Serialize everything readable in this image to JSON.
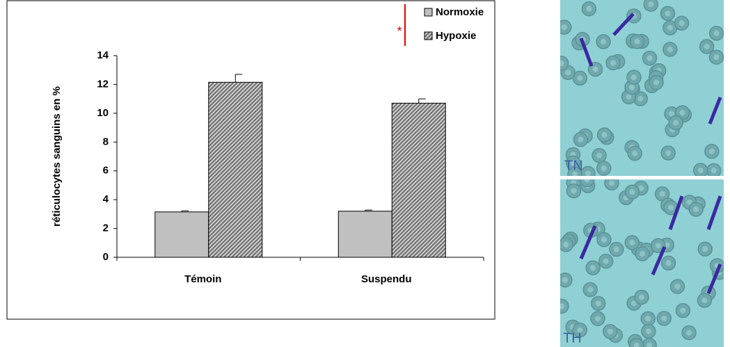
{
  "chart_data": {
    "type": "bar",
    "y_label": "réticulocytes sanguins en %",
    "categories": [
      "Témoin",
      "Suspendu"
    ],
    "series": [
      {
        "name": "Normoxie",
        "color": "#c0c0c0",
        "values": [
          3.15,
          3.2
        ],
        "errors": [
          0.08,
          0.08
        ]
      },
      {
        "name": "Hypoxie",
        "color": "#6e6e6e",
        "hatch": true,
        "values": [
          12.15,
          10.7
        ],
        "errors": [
          0.55,
          0.3
        ]
      }
    ],
    "ylim": [
      0,
      14
    ],
    "yticks": [
      0,
      2,
      4,
      6,
      8,
      10,
      12,
      14
    ],
    "annotation": "*"
  },
  "images": {
    "labels": [
      "TN",
      "TH"
    ]
  }
}
